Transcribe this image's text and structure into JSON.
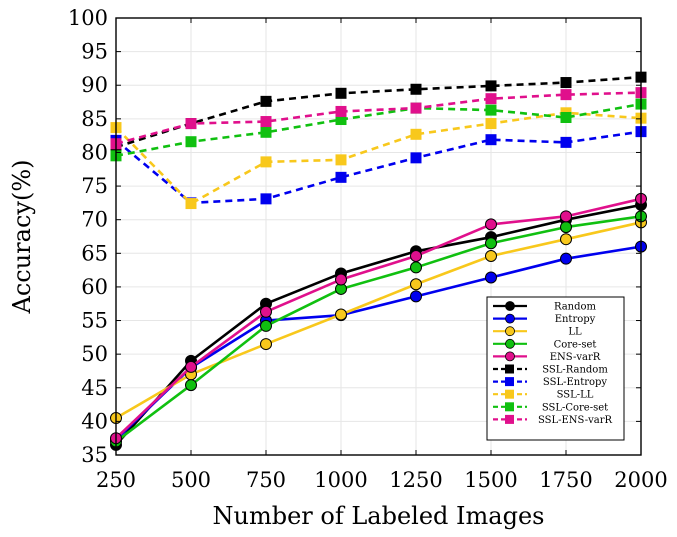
{
  "chart_data": {
    "type": "line",
    "title": "",
    "xlabel": "Number of Labeled Images",
    "ylabel": "Accuracy(%)",
    "x": [
      250,
      500,
      750,
      1000,
      1250,
      1500,
      1750,
      2000
    ],
    "x_tick_labels": [
      "250",
      "500",
      "750",
      "1000",
      "1250",
      "1500",
      "1750",
      "2000"
    ],
    "xlim": [
      250,
      2000
    ],
    "ylim": [
      35,
      100
    ],
    "y_ticks": [
      35,
      40,
      45,
      50,
      55,
      60,
      65,
      70,
      75,
      80,
      85,
      90,
      95,
      100
    ],
    "y_tick_labels": [
      "35",
      "40",
      "45",
      "50",
      "55",
      "60",
      "65",
      "70",
      "75",
      "80",
      "85",
      "90",
      "95",
      "100"
    ],
    "grid": true,
    "legend_position": "bottom-right",
    "series": [
      {
        "name": "Random",
        "color": "#000000",
        "dashed": false,
        "marker": "circle",
        "values": [
          36.5,
          49.0,
          57.5,
          62.0,
          65.3,
          67.4,
          70.0,
          72.2
        ]
      },
      {
        "name": "Entropy",
        "color": "#0000ee",
        "dashed": false,
        "marker": "circle",
        "values": [
          37.3,
          48.0,
          55.0,
          55.8,
          58.6,
          61.4,
          64.2,
          66.0
        ]
      },
      {
        "name": "LL",
        "color": "#f8c81c",
        "dashed": false,
        "marker": "circle",
        "values": [
          40.5,
          47.0,
          51.5,
          55.9,
          60.4,
          64.6,
          67.1,
          69.6
        ]
      },
      {
        "name": "Core-set",
        "color": "#10c010",
        "dashed": false,
        "marker": "circle",
        "values": [
          37.0,
          45.4,
          54.2,
          59.7,
          62.9,
          66.5,
          68.9,
          70.5
        ]
      },
      {
        "name": "ENS-varR",
        "color": "#e0108c",
        "dashed": false,
        "marker": "circle",
        "values": [
          37.5,
          48.1,
          56.3,
          61.1,
          64.6,
          69.3,
          70.5,
          73.1
        ]
      },
      {
        "name": "SSL-Random",
        "color": "#000000",
        "dashed": true,
        "marker": "square",
        "values": [
          80.8,
          84.3,
          87.6,
          88.8,
          89.4,
          89.9,
          90.4,
          91.2
        ]
      },
      {
        "name": "SSL-Entropy",
        "color": "#0000ee",
        "dashed": true,
        "marker": "square",
        "values": [
          81.8,
          72.5,
          73.1,
          76.3,
          79.2,
          81.9,
          81.5,
          83.1
        ]
      },
      {
        "name": "SSL-LL",
        "color": "#f8c81c",
        "dashed": true,
        "marker": "square",
        "values": [
          83.7,
          72.4,
          78.6,
          78.9,
          82.7,
          84.3,
          85.9,
          85.1
        ]
      },
      {
        "name": "SSL-Core-set",
        "color": "#10c010",
        "dashed": true,
        "marker": "square",
        "values": [
          79.5,
          81.6,
          83.0,
          84.9,
          86.6,
          86.3,
          85.2,
          87.2
        ]
      },
      {
        "name": "SSL-ENS-varR",
        "color": "#e0108c",
        "dashed": true,
        "marker": "square",
        "values": [
          81.3,
          84.3,
          84.6,
          86.1,
          86.6,
          88.0,
          88.6,
          88.9
        ]
      }
    ]
  }
}
